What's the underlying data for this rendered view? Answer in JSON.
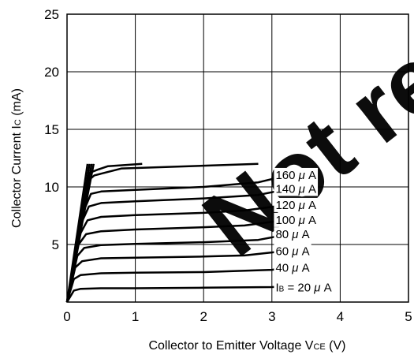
{
  "chart_data": {
    "type": "line",
    "title": "",
    "xlabel": "Collector to Emitter Voltage V",
    "xlabel_subscript": "CE",
    "xlabel_unit": " (V)",
    "ylabel": "Collector Current I",
    "ylabel_subscript": "C",
    "ylabel_unit": " (mA)",
    "xlim": [
      0,
      5
    ],
    "ylim": [
      0,
      25
    ],
    "xticks": [
      0,
      1,
      2,
      3,
      4,
      5
    ],
    "yticks": [
      5,
      10,
      15,
      20,
      25
    ],
    "grid": true,
    "series": [
      {
        "name": "IB = 20 μA",
        "label_parts": [
          "I",
          "B",
          " = 20 ",
          "μ",
          " A"
        ],
        "points": [
          [
            0,
            0
          ],
          [
            0.1,
            1.0
          ],
          [
            0.2,
            1.15
          ],
          [
            0.5,
            1.2
          ],
          [
            1.0,
            1.2
          ],
          [
            2.0,
            1.25
          ],
          [
            3.0,
            1.3
          ],
          [
            3.2,
            1.35
          ]
        ]
      },
      {
        "name": "40 μA",
        "label_parts": [
          "",
          "",
          "40 ",
          "μ",
          " A"
        ],
        "points": [
          [
            0,
            0
          ],
          [
            0.1,
            2.0
          ],
          [
            0.2,
            2.35
          ],
          [
            0.5,
            2.5
          ],
          [
            1.0,
            2.55
          ],
          [
            2.0,
            2.6
          ],
          [
            3.0,
            2.8
          ],
          [
            3.3,
            3.05
          ]
        ]
      },
      {
        "name": "60 μA",
        "label_parts": [
          "",
          "",
          "60 ",
          "μ",
          " A"
        ],
        "points": [
          [
            0,
            0
          ],
          [
            0.12,
            3.0
          ],
          [
            0.22,
            3.55
          ],
          [
            0.5,
            3.8
          ],
          [
            1.0,
            3.85
          ],
          [
            2.0,
            3.95
          ],
          [
            2.6,
            4.05
          ],
          [
            3.3,
            4.5
          ]
        ]
      },
      {
        "name": "80 μA",
        "label_parts": [
          "",
          "",
          "80 ",
          "μ",
          " A"
        ],
        "points": [
          [
            0,
            0
          ],
          [
            0.15,
            4.0
          ],
          [
            0.25,
            4.7
          ],
          [
            0.5,
            4.95
          ],
          [
            1.0,
            5.05
          ],
          [
            2.0,
            5.2
          ],
          [
            2.8,
            5.4
          ],
          [
            3.3,
            5.95
          ]
        ]
      },
      {
        "name": "100 μA",
        "label_parts": [
          "",
          "",
          "100 ",
          "μ",
          " A"
        ],
        "points": [
          [
            0,
            0
          ],
          [
            0.17,
            5.0
          ],
          [
            0.28,
            5.9
          ],
          [
            0.5,
            6.15
          ],
          [
            1.0,
            6.3
          ],
          [
            2.0,
            6.5
          ],
          [
            2.6,
            6.65
          ],
          [
            3.3,
            7.2
          ]
        ]
      },
      {
        "name": "120 μA",
        "label_parts": [
          "",
          "",
          "120 ",
          "μ",
          " A"
        ],
        "points": [
          [
            0,
            0
          ],
          [
            0.2,
            6.0
          ],
          [
            0.3,
            7.1
          ],
          [
            0.5,
            7.4
          ],
          [
            1.0,
            7.55
          ],
          [
            2.0,
            7.75
          ],
          [
            2.6,
            7.95
          ],
          [
            3.3,
            8.5
          ]
        ]
      },
      {
        "name": "140 μA",
        "label_parts": [
          "",
          "",
          "140 ",
          "μ",
          " A"
        ],
        "points": [
          [
            0,
            0
          ],
          [
            0.22,
            7.0
          ],
          [
            0.32,
            8.3
          ],
          [
            0.5,
            8.6
          ],
          [
            1.0,
            8.75
          ],
          [
            2.0,
            9.0
          ],
          [
            2.8,
            9.3
          ],
          [
            3.3,
            9.9
          ]
        ]
      },
      {
        "name": "160 μA",
        "label_parts": [
          "",
          "",
          "160 ",
          "μ",
          " A"
        ],
        "points": [
          [
            0,
            0
          ],
          [
            0.25,
            8.0
          ],
          [
            0.35,
            9.4
          ],
          [
            0.5,
            9.6
          ],
          [
            1.0,
            9.75
          ],
          [
            2.0,
            10.0
          ],
          [
            2.8,
            10.4
          ],
          [
            3.3,
            11.1
          ]
        ]
      }
    ],
    "extra_curves": [
      {
        "points": [
          [
            0,
            0
          ],
          [
            0.3,
            10.5
          ],
          [
            0.4,
            11.0
          ],
          [
            0.5,
            11.15
          ],
          [
            0.8,
            11.6
          ],
          [
            2.8,
            12.0
          ]
        ]
      },
      {
        "points": [
          [
            0,
            0
          ],
          [
            0.32,
            11.2
          ],
          [
            0.45,
            11.5
          ],
          [
            0.6,
            11.8
          ],
          [
            1.1,
            12.0
          ]
        ]
      }
    ],
    "saturation_lines": [
      {
        "points": [
          [
            0,
            0
          ],
          [
            0.3,
            12.0
          ]
        ]
      },
      {
        "points": [
          [
            0,
            0
          ],
          [
            0.33,
            12.0
          ]
        ]
      },
      {
        "points": [
          [
            0,
            0
          ],
          [
            0.36,
            12.0
          ]
        ]
      },
      {
        "points": [
          [
            0,
            0
          ],
          [
            0.39,
            12.0
          ]
        ]
      }
    ],
    "label_x": 3.4,
    "watermark": "Not rec...",
    "watermark_color": "#e00010"
  }
}
